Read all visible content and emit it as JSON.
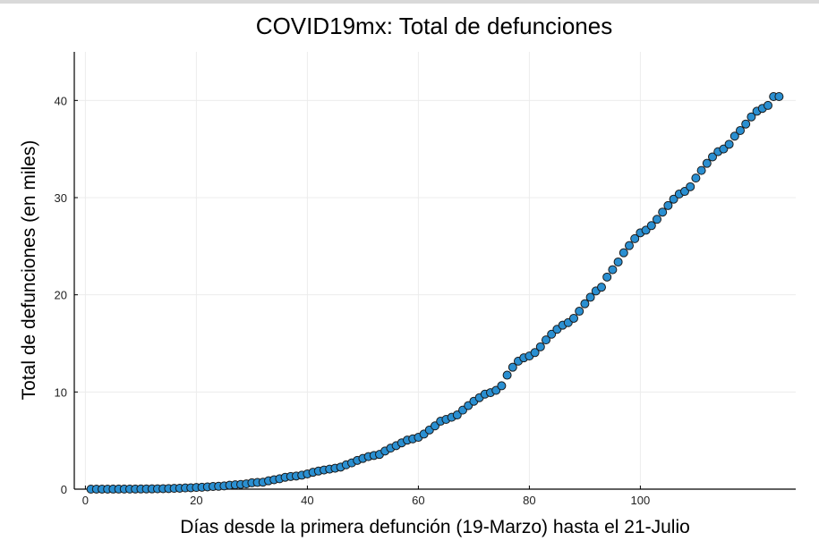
{
  "chart_data": {
    "type": "scatter",
    "title": "COVID19mx: Total de defunciones",
    "xlabel": "Días desde la primera defunción (19-Marzo) hasta el 21-Julio",
    "ylabel": "Total de defunciones (en miles)",
    "xlim": [
      -2,
      128
    ],
    "ylim": [
      0,
      45
    ],
    "xticks": [
      0,
      20,
      40,
      60,
      80,
      100
    ],
    "yticks": [
      0,
      10,
      20,
      30,
      40
    ],
    "grid": true,
    "legend": "none",
    "marker_color": "#2a8fd1",
    "marker_edge_color": "#1a1a1a",
    "x": [
      1,
      2,
      3,
      4,
      5,
      6,
      7,
      8,
      9,
      10,
      11,
      12,
      13,
      14,
      15,
      16,
      17,
      18,
      19,
      20,
      21,
      22,
      23,
      24,
      25,
      26,
      27,
      28,
      29,
      30,
      31,
      32,
      33,
      34,
      35,
      36,
      37,
      38,
      39,
      40,
      41,
      42,
      43,
      44,
      45,
      46,
      47,
      48,
      49,
      50,
      51,
      52,
      53,
      54,
      55,
      56,
      57,
      58,
      59,
      60,
      61,
      62,
      63,
      64,
      65,
      66,
      67,
      68,
      69,
      70,
      71,
      72,
      73,
      74,
      75,
      76,
      77,
      78,
      79,
      80,
      81,
      82,
      83,
      84,
      85,
      86,
      87,
      88,
      89,
      90,
      91,
      92,
      93,
      94,
      95,
      96,
      97,
      98,
      99,
      100,
      101,
      102,
      103,
      104,
      105,
      106,
      107,
      108,
      109,
      110,
      111,
      112,
      113,
      114,
      115,
      116,
      117,
      118,
      119,
      120,
      121,
      122,
      123,
      124,
      125
    ],
    "y": [
      0.001,
      0.002,
      0.004,
      0.005,
      0.006,
      0.008,
      0.01,
      0.012,
      0.016,
      0.02,
      0.028,
      0.029,
      0.037,
      0.05,
      0.06,
      0.079,
      0.094,
      0.125,
      0.141,
      0.174,
      0.194,
      0.233,
      0.273,
      0.296,
      0.332,
      0.406,
      0.449,
      0.486,
      0.546,
      0.65,
      0.686,
      0.712,
      0.857,
      0.97,
      1.069,
      1.221,
      1.305,
      1.351,
      1.434,
      1.569,
      1.732,
      1.859,
      1.972,
      2.061,
      2.154,
      2.271,
      2.507,
      2.704,
      2.961,
      3.16,
      3.353,
      3.465,
      3.573,
      3.926,
      4.22,
      4.477,
      4.767,
      5.045,
      5.177,
      5.332,
      5.666,
      6.09,
      6.51,
      6.989,
      7.179,
      7.394,
      7.633,
      8.134,
      8.597,
      9.044,
      9.415,
      9.779,
      9.93,
      10.167,
      10.637,
      11.729,
      12.545,
      13.17,
      13.511,
      13.699,
      14.053,
      14.649,
      15.357,
      15.944,
      16.448,
      16.872,
      17.141,
      17.58,
      18.31,
      19.08,
      19.747,
      20.394,
      20.781,
      21.825,
      22.584,
      23.377,
      24.324,
      25.06,
      25.779,
      26.381,
      26.648,
      27.121,
      27.769,
      28.51,
      29.189,
      29.843,
      30.366,
      30.639,
      31.119,
      32.014,
      32.796,
      33.526,
      34.191,
      34.73,
      35.006,
      35.491,
      36.327,
      36.906,
      37.574,
      38.31,
      38.888,
      39.184,
      39.485,
      40.4,
      40.4
    ]
  }
}
